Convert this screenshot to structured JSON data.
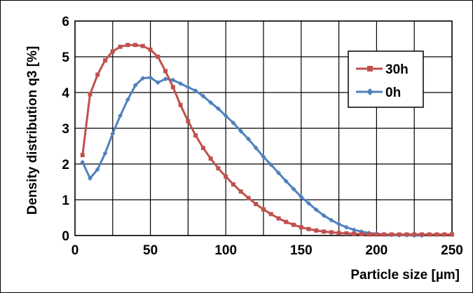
{
  "chart_data": {
    "type": "line",
    "title": "",
    "xlabel": "Particle size [µm]",
    "ylabel": "Density distribution q3 [%]",
    "xlim": [
      0,
      250
    ],
    "ylim": [
      0,
      6
    ],
    "xticks": [
      "0",
      "50",
      "100",
      "150",
      "200",
      "250"
    ],
    "yticks": [
      "0",
      "1",
      "2",
      "3",
      "4",
      "5",
      "6"
    ],
    "grid": true,
    "legend_position": "top-right",
    "series": [
      {
        "name": "30h",
        "color": "#C0504D",
        "marker": "square",
        "x": [
          5,
          10,
          15,
          20,
          25,
          30,
          35,
          40,
          45,
          50,
          55,
          60,
          65,
          70,
          75,
          80,
          85,
          90,
          95,
          100,
          105,
          110,
          115,
          120,
          125,
          130,
          135,
          140,
          145,
          150,
          155,
          160,
          165,
          170,
          175,
          180,
          185,
          190,
          195,
          200,
          205,
          210,
          215,
          220,
          225,
          230,
          235,
          240,
          245,
          250
        ],
        "y": [
          2.25,
          3.95,
          4.5,
          4.9,
          5.15,
          5.28,
          5.33,
          5.33,
          5.3,
          5.2,
          5.0,
          4.6,
          4.15,
          3.65,
          3.2,
          2.8,
          2.45,
          2.15,
          1.88,
          1.65,
          1.43,
          1.23,
          1.05,
          0.88,
          0.73,
          0.6,
          0.48,
          0.38,
          0.3,
          0.23,
          0.18,
          0.14,
          0.11,
          0.09,
          0.07,
          0.06,
          0.05,
          0.04,
          0.03,
          0.03,
          0.03,
          0.03,
          0.03,
          0.03,
          0.03,
          0.03,
          0.03,
          0.03,
          0.03,
          0.03
        ]
      },
      {
        "name": "0h",
        "color": "#4F81BD",
        "marker": "diamond",
        "x": [
          5,
          10,
          15,
          20,
          25,
          30,
          35,
          40,
          45,
          50,
          55,
          60,
          65,
          70,
          75,
          80,
          85,
          90,
          95,
          100,
          105,
          110,
          115,
          120,
          125,
          130,
          135,
          140,
          145,
          150,
          155,
          160,
          165,
          170,
          175,
          180,
          185,
          190,
          195,
          200,
          205,
          210,
          215,
          220,
          225,
          230
        ],
        "y": [
          2.05,
          1.6,
          1.85,
          2.3,
          2.85,
          3.35,
          3.8,
          4.2,
          4.4,
          4.42,
          4.28,
          4.38,
          4.35,
          4.25,
          4.15,
          4.05,
          3.9,
          3.72,
          3.55,
          3.35,
          3.15,
          2.92,
          2.7,
          2.45,
          2.2,
          1.98,
          1.75,
          1.52,
          1.3,
          1.08,
          0.9,
          0.72,
          0.56,
          0.43,
          0.32,
          0.23,
          0.16,
          0.11,
          0.07,
          0.05,
          0.03,
          0.02,
          0.01,
          0.01,
          0.0,
          0.0
        ]
      }
    ]
  }
}
